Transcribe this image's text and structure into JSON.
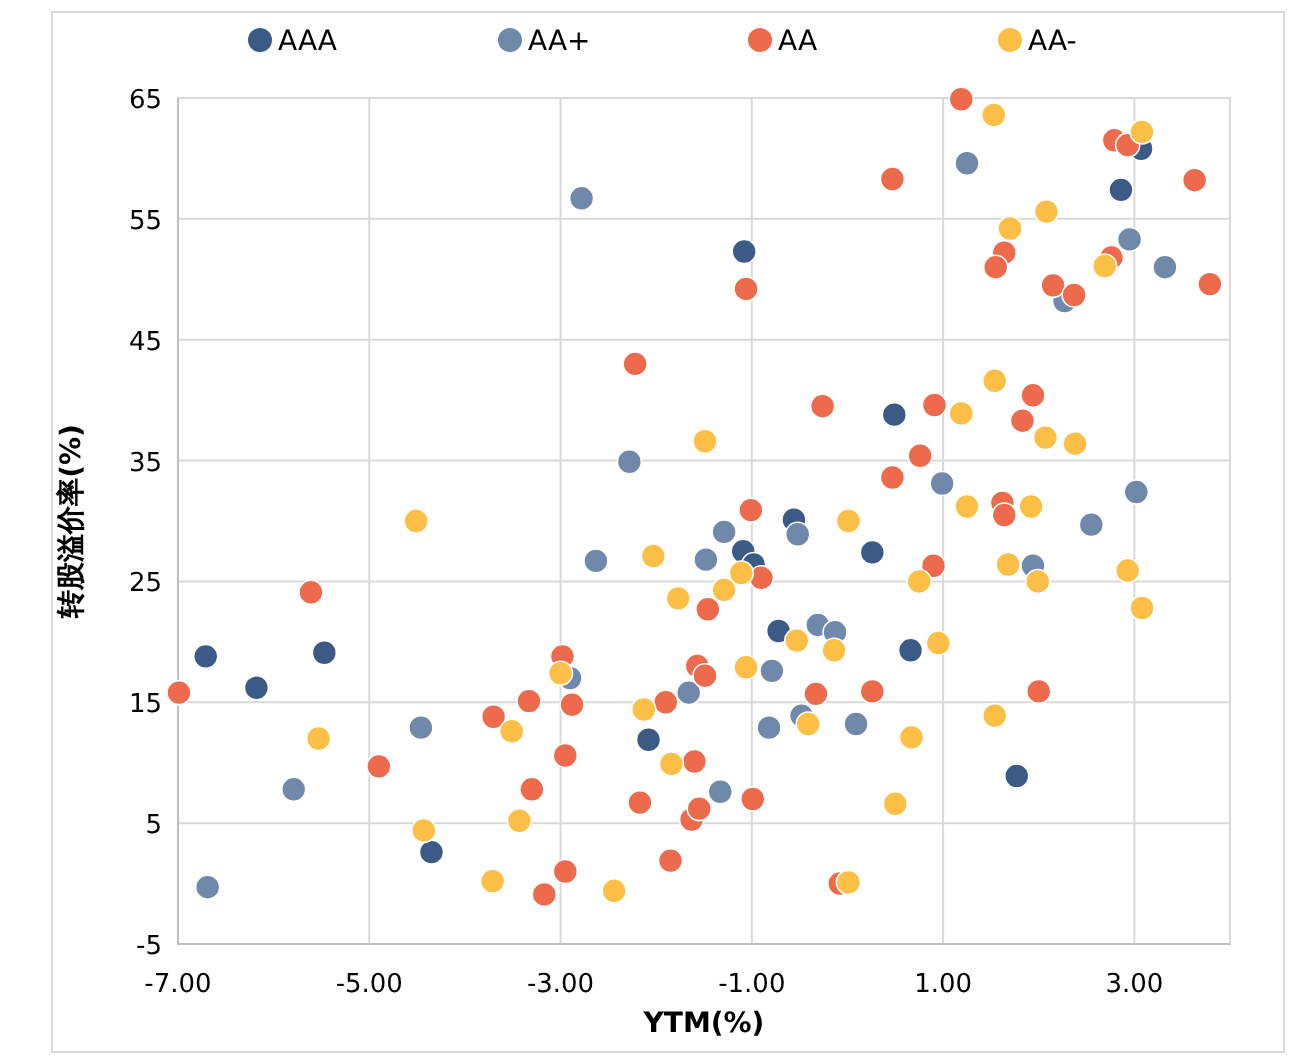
{
  "chart_data": {
    "type": "scatter",
    "xlabel": "YTM(%)",
    "ylabel": "转股溢价率(%)",
    "xlim": [
      -7,
      4
    ],
    "ylim": [
      -5,
      65
    ],
    "xticks": [
      {
        "value": -7,
        "label": "-7.00"
      },
      {
        "value": -5,
        "label": "-5.00"
      },
      {
        "value": -3,
        "label": "-3.00"
      },
      {
        "value": -1,
        "label": "-1.00"
      },
      {
        "value": 1,
        "label": "1.00"
      },
      {
        "value": 3,
        "label": "3.00"
      }
    ],
    "yticks": [
      -5,
      5,
      15,
      25,
      35,
      45,
      55,
      65
    ],
    "grid": true,
    "legend": "top",
    "marker": "circle",
    "series": [
      {
        "name": "AAA",
        "color": "#3b5a85",
        "x": [
          -6.71,
          -6.18,
          -5.47,
          -4.35,
          -2.08,
          -1.08,
          0.49,
          -0.56,
          0.26,
          -1.09,
          -0.98,
          -0.72,
          0.66,
          1.77,
          3.07,
          2.86
        ],
        "values": [
          18.8,
          16.2,
          19.1,
          2.6,
          11.9,
          52.3,
          38.8,
          30.1,
          27.4,
          27.5,
          26.4,
          20.9,
          19.3,
          8.9,
          60.8,
          57.4
        ]
      },
      {
        "name": "AA+",
        "color": "#7089ab",
        "x": [
          -2.78,
          -2.28,
          1.25,
          2.95,
          3.32,
          2.27,
          0.99,
          3.02,
          2.55,
          -0.52,
          -1.29,
          1.94,
          -0.31,
          -0.13,
          -0.79,
          -0.48,
          -0.82,
          0.09,
          -1.33,
          -5.79,
          -6.69,
          -4.46,
          -2.9,
          -1.66,
          -2.63,
          -1.48
        ],
        "values": [
          56.7,
          34.9,
          59.6,
          53.3,
          51.0,
          48.2,
          33.1,
          32.4,
          29.7,
          28.9,
          29.1,
          26.3,
          21.4,
          20.8,
          17.6,
          13.9,
          12.9,
          13.2,
          7.6,
          7.8,
          -0.3,
          12.9,
          17.0,
          15.8,
          26.7,
          26.8
        ]
      },
      {
        "name": "AA",
        "color": "#ee6a4c",
        "x": [
          -1.06,
          -2.22,
          1.19,
          0.47,
          2.79,
          2.93,
          3.63,
          1.64,
          1.55,
          2.76,
          3.79,
          2.15,
          2.37,
          1.94,
          -0.26,
          0.91,
          1.83,
          0.76,
          0.47,
          1.62,
          1.64,
          -1.01,
          -0.9,
          0.9,
          -0.33,
          0.26,
          2.0,
          -0.99,
          -0.08,
          -5.61,
          -6.99,
          -4.9,
          -3.17,
          -2.95,
          -1.85,
          -3.3,
          -2.95,
          -2.17,
          -1.6,
          -1.63,
          -1.55,
          -3.7,
          -3.33,
          -2.98,
          -2.88,
          -1.9,
          -1.57,
          -1.49,
          -1.46
        ],
        "values": [
          49.2,
          43.0,
          64.9,
          58.3,
          61.5,
          61.1,
          58.2,
          52.2,
          51.0,
          51.8,
          49.6,
          49.5,
          48.7,
          40.4,
          39.5,
          39.6,
          38.3,
          35.4,
          33.6,
          31.5,
          30.5,
          30.9,
          25.3,
          26.3,
          15.7,
          15.9,
          15.9,
          7.0,
          0.0,
          24.1,
          15.8,
          9.7,
          -0.9,
          1.0,
          1.9,
          7.8,
          10.6,
          6.7,
          10.1,
          5.3,
          6.2,
          13.8,
          15.1,
          18.8,
          14.8,
          15.0,
          18.0,
          17.2,
          22.7
        ]
      },
      {
        "name": "AA-",
        "color": "#fdbf45",
        "x": [
          -1.49,
          -4.51,
          1.53,
          3.08,
          2.08,
          1.7,
          2.69,
          1.54,
          1.19,
          2.07,
          2.38,
          1.25,
          1.92,
          0.01,
          -1.11,
          -1.29,
          0.75,
          1.68,
          1.99,
          2.93,
          3.08,
          -0.53,
          -0.14,
          0.95,
          -1.06,
          1.54,
          -0.41,
          0.67,
          0.5,
          0.01,
          -5.53,
          -4.43,
          -3.71,
          -2.44,
          -3.43,
          -1.84,
          -3.51,
          -3.0,
          -2.13,
          -1.77,
          -2.03
        ],
        "values": [
          36.6,
          30.0,
          63.6,
          62.2,
          55.6,
          54.2,
          51.1,
          41.6,
          38.9,
          36.9,
          36.4,
          31.2,
          31.2,
          30.0,
          25.7,
          24.3,
          25.0,
          26.4,
          25.0,
          25.9,
          22.8,
          20.1,
          19.3,
          19.9,
          17.9,
          13.9,
          13.2,
          12.1,
          6.6,
          0.1,
          12.0,
          4.4,
          0.2,
          -0.6,
          5.2,
          9.9,
          12.6,
          17.4,
          14.4,
          23.6,
          27.1
        ]
      }
    ]
  }
}
